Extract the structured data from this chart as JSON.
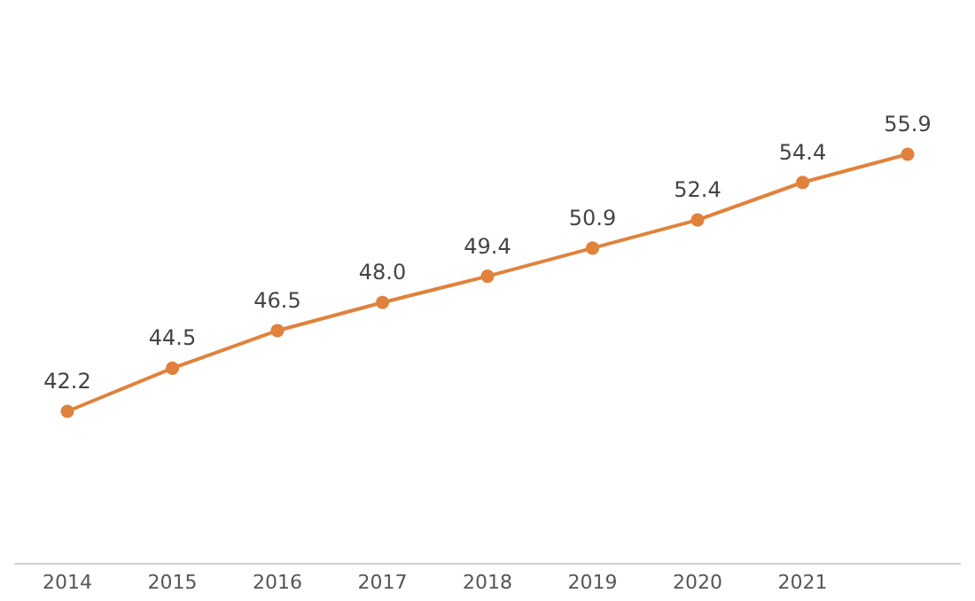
{
  "chart_data": {
    "type": "line",
    "categories": [
      "2014",
      "2015",
      "2016",
      "2017",
      "2018",
      "2019",
      "2020",
      "2021",
      null
    ],
    "series": [
      {
        "color": "#e0823c",
        "values": [
          42.2,
          44.5,
          46.5,
          48.0,
          49.4,
          50.9,
          52.4,
          54.4,
          55.9
        ],
        "value_labels": [
          "42.2",
          "44.5",
          "46.5",
          "48.0",
          "49.4",
          "50.9",
          "52.4",
          "54.4",
          "55.9"
        ]
      }
    ],
    "marker": "circle"
  }
}
